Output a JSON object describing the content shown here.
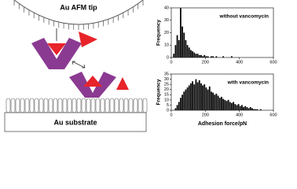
{
  "diagram": {
    "tip_label": "Au AFM tip",
    "substrate_label": "Au substrate"
  },
  "chart_data": [
    {
      "type": "histogram",
      "title": "without vancomycin",
      "ylabel": "Frequency",
      "color": "#000000",
      "bins": [
        0,
        10,
        20,
        30,
        40,
        50,
        60,
        70,
        80,
        90,
        100,
        110,
        120,
        130,
        140,
        150,
        160,
        170,
        180,
        190,
        200,
        210,
        220,
        230,
        240,
        250,
        260,
        270,
        280,
        290,
        300,
        310,
        320,
        330,
        340,
        350,
        360,
        370,
        380,
        390,
        400,
        410,
        420,
        430,
        440,
        450,
        460,
        470,
        480,
        490,
        500,
        510,
        520,
        530,
        540,
        550,
        560,
        570,
        580,
        590,
        600
      ],
      "values": [
        0,
        3,
        10,
        18,
        14,
        40,
        25,
        20,
        14,
        10,
        8,
        6,
        5,
        4,
        3,
        3,
        2,
        2,
        1,
        2,
        1,
        1,
        0,
        1,
        1,
        0,
        1,
        0,
        0,
        0,
        1,
        0,
        0,
        0,
        0,
        1,
        0,
        0,
        0,
        0,
        0,
        0,
        0,
        0,
        0,
        0,
        0,
        0,
        0,
        0,
        0,
        0,
        0,
        0,
        0,
        0,
        0,
        0,
        0,
        0
      ],
      "xlim": [
        0,
        600
      ],
      "xticks": [
        0,
        200,
        400,
        600
      ],
      "ylim": [
        0,
        40
      ],
      "yticks": [
        0,
        10,
        20,
        30,
        40
      ]
    },
    {
      "type": "histogram",
      "title": "with vancomycin",
      "ylabel": "Frequency",
      "xlabel": "Adhesion force/pN",
      "color": "#000000",
      "bins": [
        0,
        10,
        20,
        30,
        40,
        50,
        60,
        70,
        80,
        90,
        100,
        110,
        120,
        130,
        140,
        150,
        160,
        170,
        180,
        190,
        200,
        210,
        220,
        230,
        240,
        250,
        260,
        270,
        280,
        290,
        300,
        310,
        320,
        330,
        340,
        350,
        360,
        370,
        380,
        390,
        400,
        410,
        420,
        430,
        440,
        450,
        460,
        470,
        480,
        490,
        500,
        510,
        520,
        530,
        540,
        550,
        560,
        570,
        580,
        590,
        600
      ],
      "values": [
        0,
        0,
        2,
        5,
        8,
        12,
        15,
        18,
        20,
        22,
        24,
        26,
        28,
        25,
        30,
        27,
        29,
        26,
        24,
        25,
        22,
        20,
        23,
        18,
        17,
        15,
        16,
        14,
        12,
        13,
        11,
        10,
        9,
        10,
        8,
        7,
        8,
        6,
        5,
        6,
        4,
        5,
        3,
        4,
        3,
        2,
        3,
        2,
        1,
        1,
        1,
        0,
        1,
        0,
        0,
        0,
        0,
        0,
        0,
        0
      ],
      "xlim": [
        0,
        600
      ],
      "xticks": [
        0,
        200,
        400,
        600
      ],
      "ylim": [
        0,
        35
      ],
      "yticks": [
        0,
        5,
        10,
        15,
        20,
        25,
        30,
        35
      ]
    }
  ]
}
